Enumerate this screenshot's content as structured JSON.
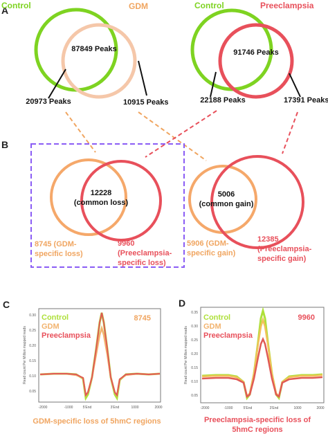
{
  "panels": {
    "a": "A",
    "b": "B",
    "c": "C",
    "d": "D"
  },
  "colors": {
    "control": "#7ed321",
    "gdm": "#f5a86a",
    "gdm_light": "#f5c7a9",
    "preeclampsia": "#e8505b",
    "orange_text": "#f0a560",
    "dashed_box": "#8a5cf5",
    "text": "#111111"
  },
  "venn_a_left": {
    "set1": "Control",
    "set2": "GDM",
    "overlap": "87849 Peaks",
    "only1": "20973 Peaks",
    "only2": "10915 Peaks"
  },
  "venn_a_right": {
    "set1": "Control",
    "set2": "Preeclampsia",
    "overlap": "91746 Peaks",
    "only1": "22188 Peaks",
    "only2": "17391 Peaks"
  },
  "venn_b_loss": {
    "overlap_line1": "12228",
    "overlap_line2": "(common loss)",
    "left_line1": "8745 (GDM-",
    "left_line2": "specific loss)",
    "right_line1": "9960",
    "right_line2": "(Preeclampsia-",
    "right_line3": "specific loss)"
  },
  "venn_b_gain": {
    "overlap_line1": "5006",
    "overlap_line2": "(common gain)",
    "left_line1": "5906 (GDM-",
    "left_line2": "specific gain)",
    "right_line1": "12385",
    "right_line2": "(Preeclampsia-",
    "right_line3": "specific gain)"
  },
  "panel_c": {
    "legend": [
      "Control",
      "GDM",
      "Preeclampsia"
    ],
    "count": "8745",
    "ylabel": "Read count Per Million mapped reads",
    "yticks": [
      "0.30",
      "0.25",
      "0.20",
      "0.15",
      "0.10",
      "0.05"
    ],
    "xticks": [
      "-2000",
      "-1000",
      "5'End",
      "3'End",
      "1000",
      "2000"
    ],
    "caption": "GDM-specific loss of 5hmC regions"
  },
  "panel_d": {
    "legend": [
      "Control",
      "GDM",
      "Preeclampsia"
    ],
    "count": "9960",
    "ylabel": "Read count Per Million mapped reads",
    "yticks": [
      "0.35",
      "0.30",
      "0.25",
      "0.20",
      "0.15",
      "0.10",
      "0.05"
    ],
    "xticks": [
      "-2000",
      "-1000",
      "5'End",
      "3'End",
      "1000",
      "2000"
    ],
    "caption_line1": "Preeclampsia-specific loss of",
    "caption_line2": "5hmC regions"
  }
}
